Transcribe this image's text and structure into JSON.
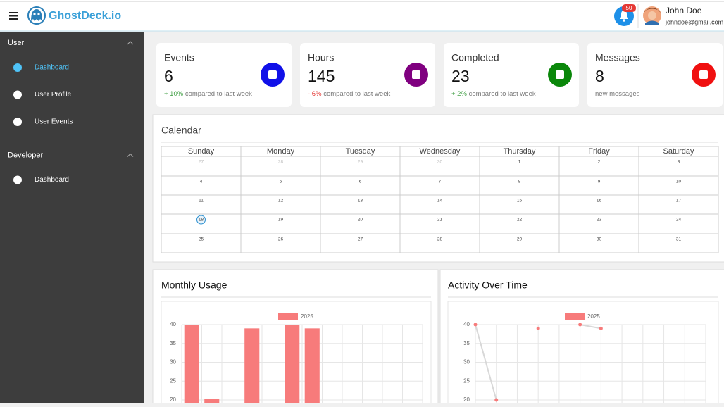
{
  "header": {
    "brand": "GhostDeck.io",
    "notifications": 50,
    "user": {
      "name": "John Doe",
      "email": "johndoe@gmail.com"
    }
  },
  "sidebar": [
    {
      "title": "User",
      "items": [
        "Dashboard",
        "User Profile",
        "User Events"
      ]
    },
    {
      "title": "Developer",
      "items": [
        "Dashboard"
      ]
    }
  ],
  "stats": [
    {
      "label": "Events",
      "value": 6,
      "change": "+ 10%",
      "note": "compared to last week",
      "color": "#1010e8"
    },
    {
      "label": "Hours",
      "value": 145,
      "change": "- 6%",
      "note": "compared to last week",
      "color": "#800080"
    },
    {
      "label": "Completed",
      "value": 23,
      "change": "+ 2%",
      "note": "compared to last week",
      "color": "#0a870a"
    },
    {
      "label": "Messages",
      "value": 8,
      "note": "new messages",
      "color": "#f01010"
    }
  ],
  "calendar": {
    "title": "Calendar",
    "weekdays": [
      "Sunday",
      "Monday",
      "Tuesday",
      "Wednesday",
      "Thursday",
      "Friday",
      "Saturday"
    ],
    "weeks": [
      [
        27,
        28,
        29,
        30,
        1,
        2,
        3
      ],
      [
        4,
        5,
        6,
        7,
        8,
        9,
        10
      ],
      [
        11,
        12,
        13,
        14,
        15,
        16,
        17
      ],
      [
        18,
        19,
        20,
        21,
        22,
        23,
        24
      ],
      [
        25,
        26,
        27,
        28,
        29,
        30,
        31
      ]
    ],
    "today": 18
  },
  "chart_data": [
    {
      "type": "bar",
      "title": "Monthly Usage",
      "categories": [
        null,
        null,
        null,
        null,
        null,
        null,
        null,
        null,
        null,
        null,
        null,
        null
      ],
      "series": [
        {
          "name": "2025",
          "color": "#f77b7b",
          "values": [
            40,
            20.2,
            null,
            39,
            null,
            40,
            39,
            null,
            null,
            null,
            null,
            null
          ]
        }
      ],
      "ylim": [
        19,
        40
      ],
      "yticks": [
        20,
        25,
        30,
        35,
        40
      ],
      "grid": true
    },
    {
      "type": "line",
      "title": "Activity Over Time",
      "categories": [
        null,
        null,
        null,
        null,
        null,
        null,
        null,
        null,
        null,
        null,
        null,
        null
      ],
      "series": [
        {
          "name": "2025",
          "color": "#f77b7b",
          "values": [
            40,
            20,
            null,
            39,
            null,
            40,
            39,
            null,
            null,
            null,
            null,
            null
          ]
        }
      ],
      "ylim": [
        19,
        40
      ],
      "yticks": [
        20,
        25,
        30,
        35,
        40
      ],
      "grid": true
    }
  ]
}
